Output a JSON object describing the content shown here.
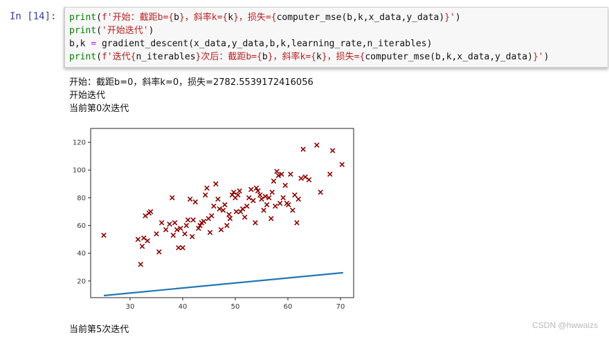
{
  "prompt": "In  [14]:",
  "code_lines": [
    [
      {
        "t": "print",
        "c": "kw"
      },
      {
        "t": "(",
        "c": ""
      },
      {
        "t": "f'开始：截距b={",
        "c": "str"
      },
      {
        "t": "b",
        "c": ""
      },
      {
        "t": "}，斜率k={",
        "c": "str"
      },
      {
        "t": "k",
        "c": ""
      },
      {
        "t": "}，损失={",
        "c": "str"
      },
      {
        "t": "computer_mse(b,k,x_data,y_data)",
        "c": ""
      },
      {
        "t": "}'",
        "c": "str"
      },
      {
        "t": ")",
        "c": ""
      }
    ],
    [
      {
        "t": "print",
        "c": "kw"
      },
      {
        "t": "(",
        "c": ""
      },
      {
        "t": "'开始迭代'",
        "c": "str"
      },
      {
        "t": ")",
        "c": ""
      }
    ],
    [
      {
        "t": "b,k ",
        "c": ""
      },
      {
        "t": "=",
        "c": "op"
      },
      {
        "t": " gradient_descent(x_data,y_data,b,k,learning_rate,n_iterables)",
        "c": ""
      }
    ],
    [
      {
        "t": "print",
        "c": "kw"
      },
      {
        "t": "(",
        "c": ""
      },
      {
        "t": "f'迭代{",
        "c": "str"
      },
      {
        "t": "n_iterables",
        "c": ""
      },
      {
        "t": "}次后：截距b={",
        "c": "str"
      },
      {
        "t": "b",
        "c": ""
      },
      {
        "t": "}，斜率k={",
        "c": "str"
      },
      {
        "t": "k",
        "c": ""
      },
      {
        "t": "}，损失={",
        "c": "str"
      },
      {
        "t": "computer_mse(b,k,x_data,y_data)",
        "c": ""
      },
      {
        "t": "}'",
        "c": "str"
      },
      {
        "t": ")",
        "c": ""
      }
    ]
  ],
  "output": {
    "line1": "开始：截距b=0，斜率k=0，损失=2782.5539172416056",
    "line2": "开始迭代",
    "line3": "当前第0次迭代",
    "line4": "当前第5次迭代"
  },
  "watermark": "CSDN @hwwaizs",
  "chart_data": {
    "type": "scatter",
    "xlim": [
      22.5,
      72.5
    ],
    "ylim": [
      8,
      130
    ],
    "xticks": [
      "30",
      "40",
      "50",
      "60",
      "70"
    ],
    "yticks": [
      "20",
      "40",
      "60",
      "80",
      "100",
      "120"
    ],
    "xtick_values": [
      30,
      40,
      50,
      60,
      70
    ],
    "ytick_values": [
      20,
      40,
      60,
      80,
      100,
      120
    ],
    "grid": false,
    "scatter_color": "#8b0000",
    "line_color": "#1f77b4",
    "points": [
      [
        25,
        53
      ],
      [
        31.5,
        50
      ],
      [
        32,
        32
      ],
      [
        32.3,
        45
      ],
      [
        32.6,
        51
      ],
      [
        32.9,
        67
      ],
      [
        33.3,
        49
      ],
      [
        33.6,
        69
      ],
      [
        33.9,
        70
      ],
      [
        35,
        54
      ],
      [
        35.5,
        41
      ],
      [
        36,
        62
      ],
      [
        36.8,
        57
      ],
      [
        37.5,
        61
      ],
      [
        38,
        80
      ],
      [
        38.2,
        53
      ],
      [
        38.5,
        62
      ],
      [
        38.9,
        57
      ],
      [
        39.2,
        44
      ],
      [
        39.6,
        58
      ],
      [
        40,
        44
      ],
      [
        40.4,
        54
      ],
      [
        40.7,
        60
      ],
      [
        41,
        64
      ],
      [
        41.4,
        79
      ],
      [
        41.8,
        52
      ],
      [
        42,
        64
      ],
      [
        42.4,
        77
      ],
      [
        43,
        58
      ],
      [
        43.3,
        60
      ],
      [
        43.6,
        62
      ],
      [
        44,
        63
      ],
      [
        44.3,
        82
      ],
      [
        44.6,
        87
      ],
      [
        44.9,
        65
      ],
      [
        45.2,
        55
      ],
      [
        45.5,
        67
      ],
      [
        45.9,
        74
      ],
      [
        46.3,
        90
      ],
      [
        46.7,
        79
      ],
      [
        47,
        72
      ],
      [
        47.3,
        57
      ],
      [
        47.7,
        71
      ],
      [
        48,
        75
      ],
      [
        48.4,
        60
      ],
      [
        48.8,
        68
      ],
      [
        49,
        65
      ],
      [
        49.4,
        82
      ],
      [
        49.7,
        84
      ],
      [
        50,
        80
      ],
      [
        50.2,
        70
      ],
      [
        50.5,
        82
      ],
      [
        50.8,
        85
      ],
      [
        51,
        70
      ],
      [
        51.4,
        72
      ],
      [
        51.8,
        66
      ],
      [
        52.2,
        74
      ],
      [
        52.6,
        80
      ],
      [
        53,
        86
      ],
      [
        53.4,
        78
      ],
      [
        53.8,
        62
      ],
      [
        54,
        87
      ],
      [
        54.3,
        85
      ],
      [
        54.7,
        82
      ],
      [
        55,
        79
      ],
      [
        55.4,
        71
      ],
      [
        55.7,
        81
      ],
      [
        56,
        75
      ],
      [
        56.4,
        80
      ],
      [
        56.8,
        65
      ],
      [
        57,
        84
      ],
      [
        57.3,
        92
      ],
      [
        57.6,
        74
      ],
      [
        57.9,
        99
      ],
      [
        58.2,
        96
      ],
      [
        58.5,
        76
      ],
      [
        58.8,
        97
      ],
      [
        59.1,
        80
      ],
      [
        59.5,
        89
      ],
      [
        59.8,
        76
      ],
      [
        60.1,
        75
      ],
      [
        60.5,
        97
      ],
      [
        60.9,
        71
      ],
      [
        61.3,
        82
      ],
      [
        61.7,
        62
      ],
      [
        62,
        79
      ],
      [
        62.5,
        94
      ],
      [
        62.9,
        115
      ],
      [
        63.3,
        95
      ],
      [
        64,
        93
      ],
      [
        65.5,
        118
      ],
      [
        66.2,
        84
      ],
      [
        68,
        97
      ],
      [
        68.5,
        114
      ],
      [
        70.3,
        104
      ]
    ],
    "fit_line": [
      [
        25,
        9.5
      ],
      [
        70.5,
        26
      ]
    ]
  }
}
